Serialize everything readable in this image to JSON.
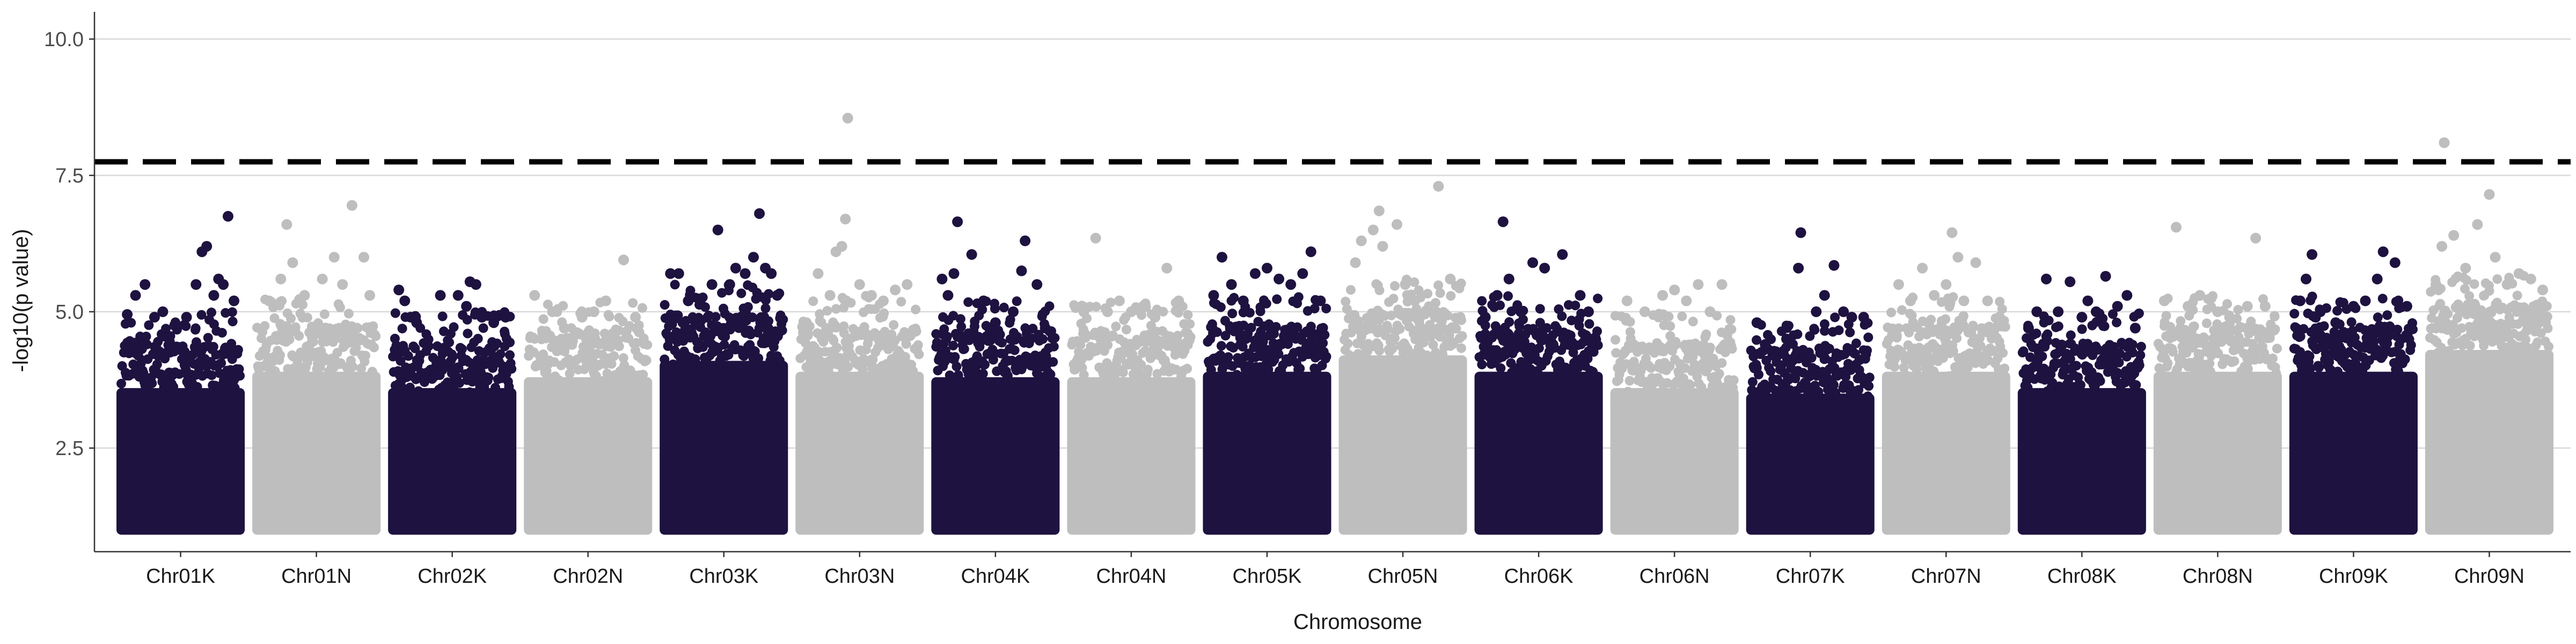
{
  "chart_data": {
    "type": "scatter",
    "title": "",
    "xlabel": "Chromosome",
    "ylabel": "-log10(p value)",
    "ylim": [
      0.6,
      10.5
    ],
    "y_ticks": [
      "2.5",
      "5.0",
      "7.5",
      "10.0"
    ],
    "grid": "horizontal major lines only",
    "threshold": 7.75,
    "colors": {
      "odd": "#1e1240",
      "even": "#bebebe",
      "threshold": "#000000",
      "grid": "#d9d9d9"
    },
    "categories": [
      "Chr01K",
      "Chr01N",
      "Chr02K",
      "Chr02N",
      "Chr03K",
      "Chr03N",
      "Chr04K",
      "Chr04N",
      "Chr05K",
      "Chr05N",
      "Chr06K",
      "Chr06N",
      "Chr07K",
      "Chr07N",
      "Chr08K",
      "Chr08N",
      "Chr09K",
      "Chr09N"
    ],
    "chromosomes": [
      {
        "name": "Chr01K",
        "base_top": 4.0,
        "top_points": [
          [
            0.05,
            4.95
          ],
          [
            0.12,
            5.3
          ],
          [
            0.2,
            5.5
          ],
          [
            0.28,
            4.9
          ],
          [
            0.35,
            5.0
          ],
          [
            0.45,
            4.75
          ],
          [
            0.55,
            4.9
          ],
          [
            0.63,
            5.5
          ],
          [
            0.68,
            6.1
          ],
          [
            0.72,
            6.2
          ],
          [
            0.78,
            5.3
          ],
          [
            0.82,
            5.6
          ],
          [
            0.86,
            5.5
          ],
          [
            0.9,
            6.75
          ],
          [
            0.95,
            5.2
          ]
        ]
      },
      {
        "name": "Chr01N",
        "base_top": 4.3,
        "top_points": [
          [
            0.1,
            5.2
          ],
          [
            0.2,
            5.6
          ],
          [
            0.25,
            6.6
          ],
          [
            0.3,
            5.9
          ],
          [
            0.4,
            5.3
          ],
          [
            0.55,
            5.6
          ],
          [
            0.65,
            6.0
          ],
          [
            0.72,
            5.5
          ],
          [
            0.8,
            6.95
          ],
          [
            0.9,
            6.0
          ],
          [
            0.95,
            5.3
          ]
        ]
      },
      {
        "name": "Chr02K",
        "base_top": 4.0,
        "top_points": [
          [
            0.05,
            5.4
          ],
          [
            0.1,
            5.2
          ],
          [
            0.15,
            4.9
          ],
          [
            0.2,
            4.8
          ],
          [
            0.4,
            5.3
          ],
          [
            0.55,
            5.3
          ],
          [
            0.62,
            5.1
          ],
          [
            0.65,
            5.55
          ],
          [
            0.7,
            5.5
          ],
          [
            0.75,
            4.9
          ],
          [
            0.85,
            4.8
          ],
          [
            0.95,
            4.9
          ]
        ]
      },
      {
        "name": "Chr02N",
        "base_top": 4.2,
        "top_points": [
          [
            0.05,
            5.3
          ],
          [
            0.2,
            5.0
          ],
          [
            0.3,
            4.7
          ],
          [
            0.45,
            4.9
          ],
          [
            0.55,
            5.0
          ],
          [
            0.65,
            5.2
          ],
          [
            0.8,
            5.95
          ],
          [
            0.9,
            4.9
          ]
        ]
      },
      {
        "name": "Chr03K",
        "base_top": 4.5,
        "top_points": [
          [
            0.05,
            5.7
          ],
          [
            0.12,
            5.7
          ],
          [
            0.2,
            5.2
          ],
          [
            0.3,
            5.2
          ],
          [
            0.4,
            5.5
          ],
          [
            0.45,
            6.5
          ],
          [
            0.55,
            5.5
          ],
          [
            0.6,
            5.8
          ],
          [
            0.68,
            5.7
          ],
          [
            0.75,
            6.0
          ],
          [
            0.8,
            6.8
          ],
          [
            0.85,
            5.8
          ],
          [
            0.9,
            5.7
          ],
          [
            0.95,
            5.3
          ]
        ]
      },
      {
        "name": "Chr03N",
        "base_top": 4.3,
        "top_points": [
          [
            0.05,
            4.8
          ],
          [
            0.15,
            5.7
          ],
          [
            0.25,
            5.3
          ],
          [
            0.3,
            6.1
          ],
          [
            0.35,
            6.2
          ],
          [
            0.38,
            6.7
          ],
          [
            0.4,
            8.55
          ],
          [
            0.5,
            5.5
          ],
          [
            0.6,
            5.3
          ],
          [
            0.7,
            5.2
          ],
          [
            0.8,
            5.4
          ],
          [
            0.9,
            5.5
          ]
        ]
      },
      {
        "name": "Chr04K",
        "base_top": 4.2,
        "top_points": [
          [
            0.05,
            5.6
          ],
          [
            0.1,
            5.3
          ],
          [
            0.15,
            5.7
          ],
          [
            0.18,
            6.65
          ],
          [
            0.3,
            6.05
          ],
          [
            0.4,
            5.2
          ],
          [
            0.5,
            4.8
          ],
          [
            0.65,
            5.0
          ],
          [
            0.72,
            5.75
          ],
          [
            0.75,
            6.3
          ],
          [
            0.85,
            5.5
          ],
          [
            0.92,
            4.7
          ]
        ]
      },
      {
        "name": "Chr04N",
        "base_top": 4.2,
        "top_points": [
          [
            0.1,
            5.0
          ],
          [
            0.2,
            6.35
          ],
          [
            0.3,
            5.0
          ],
          [
            0.4,
            5.2
          ],
          [
            0.5,
            5.0
          ],
          [
            0.6,
            5.1
          ],
          [
            0.7,
            4.9
          ],
          [
            0.8,
            5.8
          ],
          [
            0.9,
            5.2
          ]
        ]
      },
      {
        "name": "Chr05K",
        "base_top": 4.3,
        "top_points": [
          [
            0.05,
            5.3
          ],
          [
            0.12,
            6.0
          ],
          [
            0.2,
            5.5
          ],
          [
            0.3,
            5.2
          ],
          [
            0.4,
            5.7
          ],
          [
            0.5,
            5.8
          ],
          [
            0.6,
            5.6
          ],
          [
            0.7,
            5.5
          ],
          [
            0.8,
            5.7
          ],
          [
            0.87,
            6.1
          ],
          [
            0.95,
            5.2
          ]
        ]
      },
      {
        "name": "Chr05N",
        "base_top": 4.6,
        "top_points": [
          [
            0.1,
            5.9
          ],
          [
            0.15,
            6.3
          ],
          [
            0.25,
            6.5
          ],
          [
            0.3,
            6.85
          ],
          [
            0.33,
            6.2
          ],
          [
            0.45,
            6.6
          ],
          [
            0.52,
            5.5
          ],
          [
            0.6,
            5.2
          ],
          [
            0.8,
            7.3
          ],
          [
            0.9,
            5.6
          ]
        ]
      },
      {
        "name": "Chr06K",
        "base_top": 4.3,
        "top_points": [
          [
            0.05,
            4.9
          ],
          [
            0.15,
            5.3
          ],
          [
            0.2,
            6.65
          ],
          [
            0.25,
            5.6
          ],
          [
            0.35,
            5.0
          ],
          [
            0.45,
            5.9
          ],
          [
            0.55,
            5.8
          ],
          [
            0.7,
            6.05
          ],
          [
            0.85,
            5.3
          ],
          [
            0.92,
            5.0
          ]
        ]
      },
      {
        "name": "Chr06N",
        "base_top": 4.0,
        "top_points": [
          [
            0.1,
            5.2
          ],
          [
            0.25,
            5.0
          ],
          [
            0.4,
            5.3
          ],
          [
            0.5,
            5.4
          ],
          [
            0.6,
            5.2
          ],
          [
            0.7,
            5.5
          ],
          [
            0.8,
            5.0
          ],
          [
            0.9,
            5.5
          ]
        ]
      },
      {
        "name": "Chr07K",
        "base_top": 3.9,
        "top_points": [
          [
            0.05,
            4.8
          ],
          [
            0.12,
            4.4
          ],
          [
            0.2,
            4.2
          ],
          [
            0.3,
            4.5
          ],
          [
            0.4,
            5.8
          ],
          [
            0.42,
            6.45
          ],
          [
            0.55,
            5.0
          ],
          [
            0.62,
            5.3
          ],
          [
            0.7,
            5.85
          ],
          [
            0.78,
            5.0
          ],
          [
            0.85,
            4.9
          ],
          [
            0.95,
            4.9
          ]
        ]
      },
      {
        "name": "Chr07N",
        "base_top": 4.3,
        "top_points": [
          [
            0.1,
            5.5
          ],
          [
            0.2,
            5.2
          ],
          [
            0.3,
            5.8
          ],
          [
            0.4,
            5.3
          ],
          [
            0.5,
            5.5
          ],
          [
            0.55,
            6.45
          ],
          [
            0.6,
            6.0
          ],
          [
            0.65,
            5.2
          ],
          [
            0.75,
            5.9
          ],
          [
            0.85,
            5.2
          ],
          [
            0.95,
            4.9
          ]
        ]
      },
      {
        "name": "Chr08K",
        "base_top": 4.0,
        "top_points": [
          [
            0.05,
            4.7
          ],
          [
            0.12,
            5.0
          ],
          [
            0.2,
            5.6
          ],
          [
            0.3,
            5.0
          ],
          [
            0.4,
            5.55
          ],
          [
            0.5,
            4.9
          ],
          [
            0.55,
            5.2
          ],
          [
            0.62,
            5.0
          ],
          [
            0.7,
            5.65
          ],
          [
            0.8,
            5.1
          ],
          [
            0.88,
            5.3
          ],
          [
            0.95,
            4.7
          ]
        ]
      },
      {
        "name": "Chr08N",
        "base_top": 4.3,
        "top_points": [
          [
            0.05,
            5.2
          ],
          [
            0.15,
            6.55
          ],
          [
            0.25,
            5.1
          ],
          [
            0.35,
            5.3
          ],
          [
            0.5,
            5.0
          ],
          [
            0.6,
            4.9
          ],
          [
            0.75,
            5.1
          ],
          [
            0.82,
            6.35
          ],
          [
            0.9,
            5.1
          ]
        ]
      },
      {
        "name": "Chr09K",
        "base_top": 4.3,
        "top_points": [
          [
            0.05,
            5.2
          ],
          [
            0.1,
            5.6
          ],
          [
            0.15,
            6.05
          ],
          [
            0.22,
            5.0
          ],
          [
            0.35,
            4.8
          ],
          [
            0.45,
            4.6
          ],
          [
            0.5,
            5.1
          ],
          [
            0.6,
            5.2
          ],
          [
            0.7,
            5.6
          ],
          [
            0.75,
            6.1
          ],
          [
            0.85,
            5.9
          ],
          [
            0.95,
            5.1
          ]
        ]
      },
      {
        "name": "Chr09N",
        "base_top": 4.7,
        "top_points": [
          [
            0.05,
            5.5
          ],
          [
            0.1,
            6.2
          ],
          [
            0.12,
            8.1
          ],
          [
            0.2,
            6.4
          ],
          [
            0.3,
            5.8
          ],
          [
            0.4,
            6.6
          ],
          [
            0.5,
            7.15
          ],
          [
            0.55,
            6.0
          ],
          [
            0.65,
            5.5
          ],
          [
            0.75,
            5.7
          ],
          [
            0.85,
            5.6
          ],
          [
            0.95,
            5.4
          ]
        ]
      }
    ]
  }
}
